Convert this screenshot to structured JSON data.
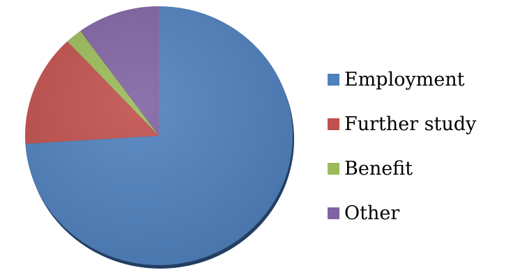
{
  "chart_data": {
    "type": "pie",
    "title": "",
    "legend_position": "right",
    "categories": [
      "Employment",
      "Further study",
      "Benefit",
      "Other"
    ],
    "values": [
      74,
      14,
      2,
      10
    ],
    "colors": [
      "#4f81bd",
      "#c0504d",
      "#9bbb59",
      "#8064a2"
    ]
  },
  "legend": {
    "items": [
      {
        "label": "Employment",
        "color": "#4f81bd"
      },
      {
        "label": "Further study",
        "color": "#c0504d"
      },
      {
        "label": "Benefit",
        "color": "#9bbb59"
      },
      {
        "label": "Other",
        "color": "#8064a2"
      }
    ]
  }
}
